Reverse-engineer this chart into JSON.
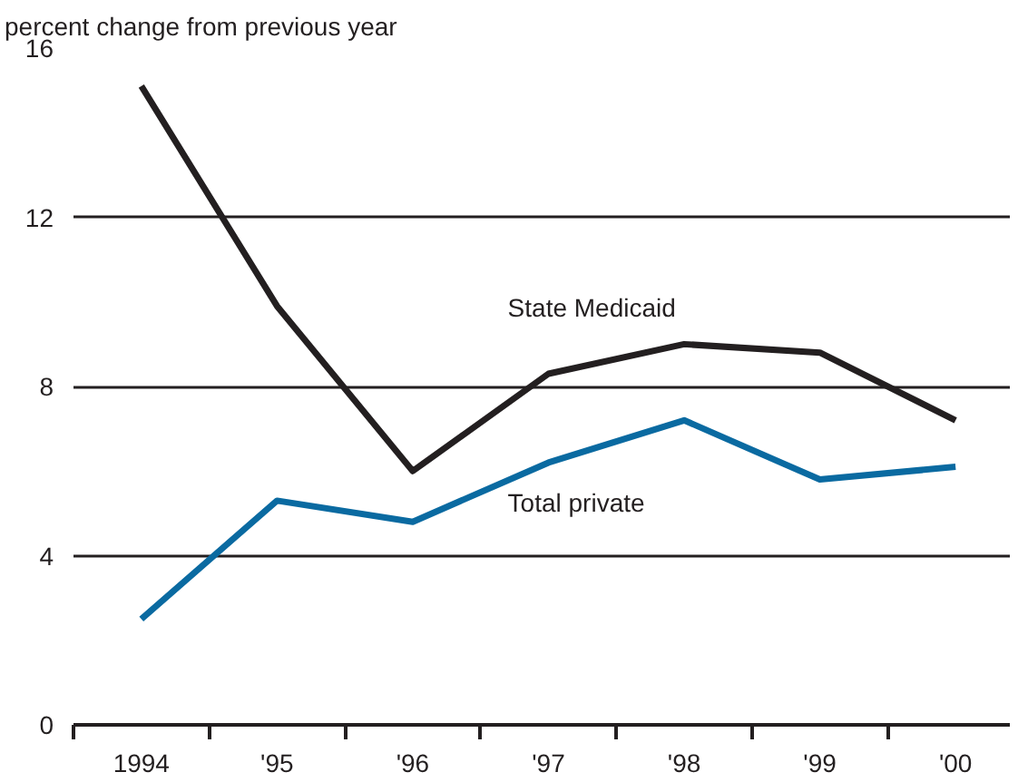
{
  "chart_data": {
    "type": "line",
    "ylabel": "percent change from previous year",
    "categories": [
      "1994",
      "'95",
      "'96",
      "'97",
      "'98",
      "'99",
      "'00"
    ],
    "series": [
      {
        "name": "State Medicaid",
        "color": "#231f20",
        "values": [
          15.1,
          9.9,
          6.0,
          8.3,
          9.0,
          8.8,
          7.2
        ]
      },
      {
        "name": "Total private",
        "color": "#0a6aa1",
        "values": [
          2.5,
          5.3,
          4.8,
          6.2,
          7.2,
          5.8,
          6.1
        ]
      }
    ],
    "ylim": [
      0,
      16
    ],
    "yticks": [
      0,
      4,
      8,
      12,
      16
    ],
    "grid": "y",
    "marker": "none",
    "line_style": "solid"
  }
}
